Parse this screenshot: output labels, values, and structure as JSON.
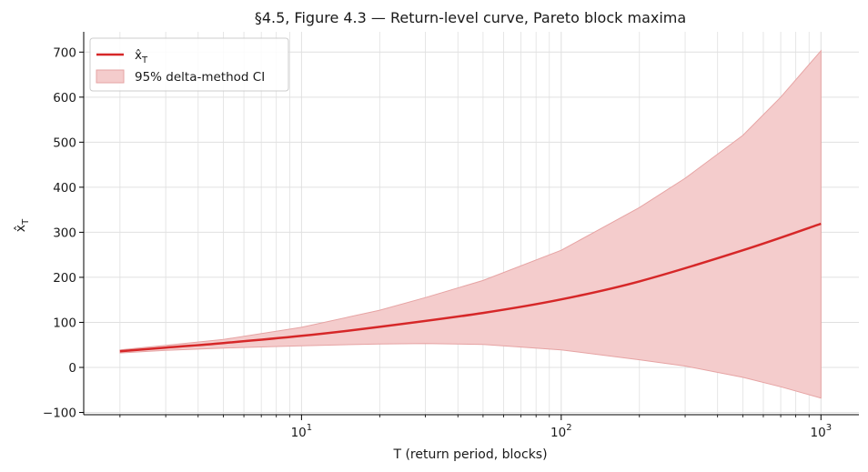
{
  "chart_data": {
    "type": "line",
    "title": "§4.5, Figure 4.3 — Return-level curve, Pareto block maxima",
    "xlabel": "T (return period, blocks)",
    "ylabel": "x̂",
    "ylabel_sub": "T",
    "x_scale": "log",
    "xlim": [
      1.45,
      1400
    ],
    "ylim": [
      -105,
      745
    ],
    "x_ticks": [
      {
        "base": "10",
        "exp": "1",
        "value": 10
      },
      {
        "base": "10",
        "exp": "2",
        "value": 100
      },
      {
        "base": "10",
        "exp": "3",
        "value": 1000
      }
    ],
    "y_ticks": [
      "−100",
      "0",
      "100",
      "200",
      "300",
      "400",
      "500",
      "600",
      "700"
    ],
    "y_tick_values": [
      -100,
      0,
      100,
      200,
      300,
      400,
      500,
      600,
      700
    ],
    "grid": true,
    "legend_position": "top-left",
    "colors": {
      "line": "#d62728",
      "band_fill": "#f4cccc",
      "band_edge": "#e6a3a3",
      "grid": "#e0e0e0",
      "legend_border": "#cccccc"
    },
    "series": [
      {
        "name": "x̂",
        "name_sub": "T",
        "kind": "line",
        "x": [
          2,
          3,
          5,
          10,
          20,
          50,
          100,
          200,
          500,
          1000
        ],
        "y": [
          36,
          44,
          54,
          70,
          90,
          121,
          151,
          191,
          260,
          319
        ]
      },
      {
        "name": "95% delta-method CI",
        "kind": "band",
        "x": [
          2,
          3,
          5,
          10,
          20,
          30,
          50,
          100,
          200,
          300,
          500,
          700,
          1000
        ],
        "lower": [
          32,
          38,
          43,
          48,
          52,
          53,
          51,
          39,
          17,
          3,
          -22,
          -43,
          -68
        ],
        "upper": [
          39,
          49,
          62,
          89,
          127,
          155,
          193,
          260,
          355,
          420,
          515,
          600,
          703
        ]
      }
    ]
  }
}
